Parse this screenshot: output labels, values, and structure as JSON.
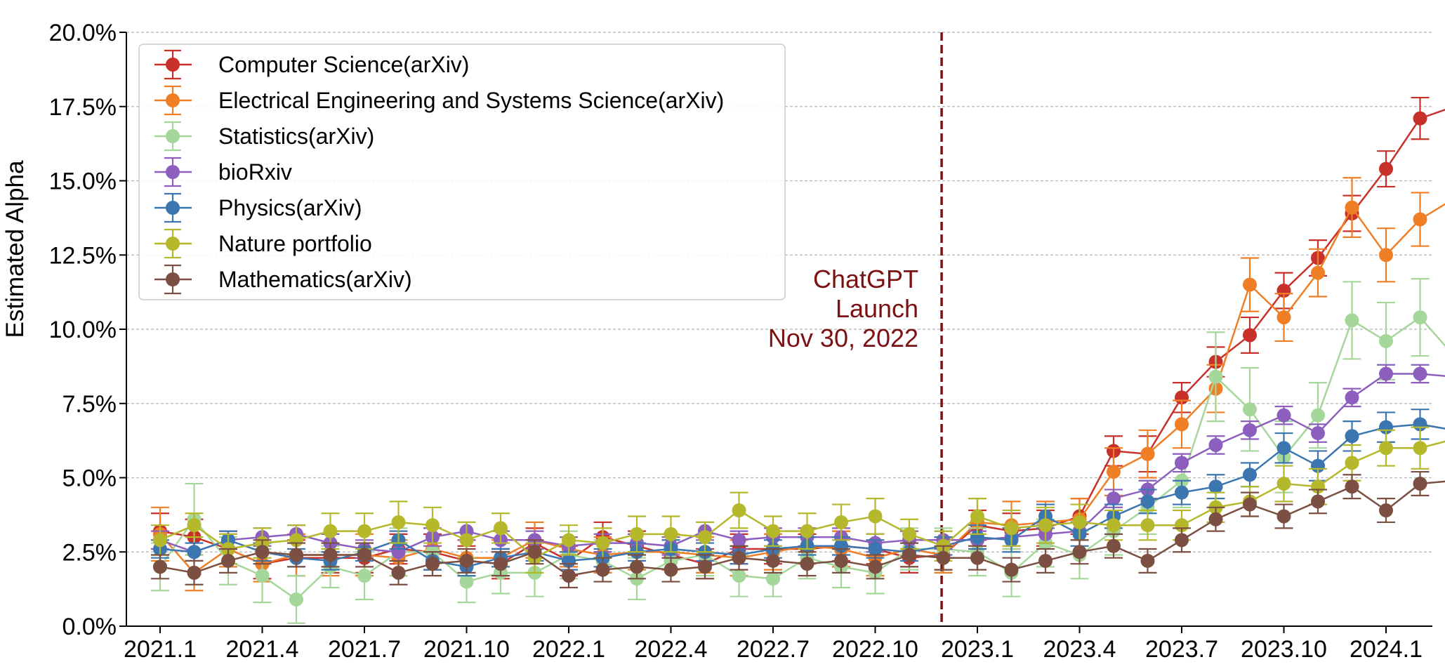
{
  "chart_data": {
    "type": "line",
    "title": "",
    "xlabel": "",
    "ylabel": "Estimated Alpha",
    "ylim": [
      0,
      20
    ],
    "y_ticks": [
      0,
      2.5,
      5,
      7.5,
      10,
      12.5,
      15,
      17.5,
      20
    ],
    "y_tick_labels": [
      "0.0%",
      "2.5%",
      "5.0%",
      "7.5%",
      "10.0%",
      "12.5%",
      "15.0%",
      "17.5%",
      "20.0%"
    ],
    "x_tick_indices": [
      0,
      3,
      6,
      9,
      12,
      15,
      18,
      21,
      24,
      27,
      30,
      33,
      36
    ],
    "x_tick_labels": [
      "2021.1",
      "2021.4",
      "2021.7",
      "2021.10",
      "2022.1",
      "2022.4",
      "2022.7",
      "2022.10",
      "2023.1",
      "2023.4",
      "2023.7",
      "2023.10",
      "2024.1"
    ],
    "grid": "horizontal dashed",
    "legend_position": "top-left",
    "annotation": {
      "lines": [
        "ChatGPT",
        "Launch",
        "Nov 30, 2022"
      ],
      "x_index": 22.95,
      "color": "#7b1113",
      "style": "dashed vertical line"
    },
    "series": [
      {
        "name": "Computer Science(arXiv)",
        "color": "#c8302a",
        "values": [
          3.2,
          3.0,
          2.6,
          2.1,
          2.3,
          2.3,
          2.3,
          2.6,
          2.5,
          2.2,
          2.1,
          2.8,
          2.2,
          3.0,
          2.7,
          2.4,
          2.1,
          2.6,
          2.6,
          2.6,
          2.7,
          2.6,
          2.3,
          2.4,
          3.4,
          3.2,
          3.3,
          3.7,
          5.9,
          5.8,
          7.7,
          8.9,
          9.8,
          11.3,
          12.4,
          13.9,
          15.4,
          17.1,
          17.5
        ],
        "errors": [
          0.6,
          0.6,
          0.5,
          0.5,
          0.6,
          0.5,
          0.5,
          0.5,
          0.6,
          0.5,
          0.5,
          0.5,
          0.5,
          0.5,
          0.5,
          0.5,
          0.5,
          0.5,
          0.5,
          0.5,
          0.5,
          0.5,
          0.5,
          0.5,
          0.5,
          0.6,
          0.6,
          0.6,
          0.5,
          0.6,
          0.5,
          0.5,
          0.6,
          0.6,
          0.6,
          0.6,
          0.6,
          0.7,
          0.7
        ]
      },
      {
        "name": "Electrical Engineering and Systems Science(arXiv)",
        "color": "#f07e25",
        "values": [
          3.1,
          1.8,
          2.6,
          2.1,
          2.4,
          2.4,
          2.4,
          2.3,
          2.6,
          2.3,
          2.3,
          2.9,
          2.6,
          2.4,
          2.5,
          2.5,
          2.4,
          2.3,
          2.5,
          2.7,
          2.6,
          2.3,
          2.6,
          2.4,
          3.5,
          3.4,
          3.5,
          3.6,
          5.2,
          5.8,
          6.8,
          8.0,
          11.5,
          10.4,
          11.9,
          14.1,
          12.5,
          13.7,
          14.4
        ],
        "errors": [
          0.9,
          0.6,
          0.6,
          0.6,
          0.7,
          0.7,
          0.7,
          0.6,
          0.7,
          0.6,
          0.6,
          0.6,
          0.6,
          0.6,
          0.6,
          0.6,
          0.6,
          0.6,
          0.6,
          0.6,
          0.6,
          0.6,
          0.6,
          0.6,
          0.8,
          0.8,
          0.7,
          0.7,
          0.8,
          0.8,
          0.8,
          0.8,
          0.9,
          0.8,
          0.8,
          1.0,
          0.9,
          0.9,
          0.9
        ]
      },
      {
        "name": "Statistics(arXiv)",
        "color": "#a6d79a",
        "values": [
          2.0,
          3.6,
          2.2,
          1.7,
          0.9,
          2.0,
          1.7,
          2.5,
          2.5,
          1.5,
          1.8,
          1.8,
          2.4,
          2.2,
          1.6,
          2.2,
          2.4,
          1.7,
          1.6,
          2.3,
          2.0,
          1.8,
          2.6,
          2.6,
          2.5,
          1.8,
          2.8,
          2.4,
          3.2,
          4.0,
          4.9,
          8.4,
          7.3,
          5.7,
          7.1,
          10.3,
          9.6,
          10.4,
          9.1
        ],
        "errors": [
          0.8,
          1.2,
          0.8,
          0.9,
          0.8,
          0.7,
          0.8,
          0.8,
          0.8,
          0.7,
          0.7,
          0.8,
          0.8,
          0.7,
          0.7,
          0.7,
          0.7,
          0.7,
          0.6,
          0.7,
          0.7,
          0.7,
          0.7,
          0.7,
          0.8,
          0.8,
          0.8,
          0.8,
          0.8,
          0.9,
          0.9,
          1.5,
          1.4,
          1.2,
          1.1,
          1.3,
          1.3,
          1.3,
          1.1
        ]
      },
      {
        "name": "bioRxiv",
        "color": "#8c5fbf",
        "values": [
          2.9,
          2.5,
          2.9,
          3.0,
          3.1,
          2.8,
          2.6,
          2.5,
          3.0,
          3.2,
          2.9,
          2.9,
          2.7,
          2.8,
          2.8,
          2.7,
          3.2,
          2.9,
          3.0,
          3.0,
          3.0,
          2.8,
          2.9,
          2.9,
          2.9,
          3.0,
          3.1,
          3.2,
          4.3,
          4.6,
          5.5,
          6.1,
          6.6,
          7.1,
          6.5,
          7.7,
          8.5,
          8.5,
          8.4
        ],
        "errors": [
          0.3,
          0.3,
          0.3,
          0.3,
          0.3,
          0.3,
          0.3,
          0.3,
          0.3,
          0.3,
          0.3,
          0.3,
          0.3,
          0.3,
          0.3,
          0.3,
          0.3,
          0.3,
          0.3,
          0.3,
          0.3,
          0.3,
          0.3,
          0.3,
          0.3,
          0.3,
          0.3,
          0.3,
          0.3,
          0.3,
          0.3,
          0.3,
          0.3,
          0.3,
          0.3,
          0.3,
          0.3,
          0.3,
          0.3
        ]
      },
      {
        "name": "Physics(arXiv)",
        "color": "#3b76b0",
        "values": [
          2.6,
          2.5,
          2.9,
          2.5,
          2.3,
          2.2,
          2.5,
          2.9,
          2.2,
          2.0,
          2.3,
          2.5,
          2.2,
          2.3,
          2.5,
          2.6,
          2.5,
          2.4,
          2.6,
          2.7,
          2.7,
          2.6,
          2.5,
          2.7,
          3.0,
          2.9,
          3.7,
          3.1,
          3.7,
          4.2,
          4.5,
          4.7,
          5.1,
          6.0,
          5.4,
          6.4,
          6.7,
          6.8,
          6.6
        ],
        "errors": [
          0.3,
          0.3,
          0.3,
          0.3,
          0.3,
          0.3,
          0.3,
          0.3,
          0.3,
          0.3,
          0.3,
          0.3,
          0.3,
          0.3,
          0.3,
          0.3,
          0.3,
          0.3,
          0.3,
          0.3,
          0.3,
          0.3,
          0.3,
          0.3,
          0.4,
          0.4,
          0.4,
          0.4,
          0.4,
          0.4,
          0.4,
          0.4,
          0.4,
          0.5,
          0.5,
          0.5,
          0.5,
          0.5,
          0.5
        ]
      },
      {
        "name": "Nature portfolio",
        "color": "#b5b82b",
        "values": [
          2.9,
          3.4,
          2.6,
          2.8,
          2.9,
          3.2,
          3.2,
          3.5,
          3.4,
          2.9,
          3.3,
          2.3,
          2.9,
          2.8,
          3.1,
          3.1,
          3.0,
          3.9,
          3.2,
          3.2,
          3.5,
          3.7,
          3.1,
          2.7,
          3.7,
          3.3,
          3.4,
          3.5,
          3.4,
          3.4,
          3.4,
          4.0,
          4.2,
          4.8,
          4.7,
          5.5,
          6.0,
          6.0,
          6.3
        ],
        "errors": [
          0.5,
          0.4,
          0.5,
          0.5,
          0.5,
          0.6,
          0.6,
          0.7,
          0.6,
          0.6,
          0.5,
          0.5,
          0.5,
          0.5,
          0.6,
          0.6,
          0.5,
          0.6,
          0.5,
          0.6,
          0.6,
          0.6,
          0.5,
          0.5,
          0.6,
          0.6,
          0.6,
          0.6,
          0.5,
          0.5,
          0.5,
          0.5,
          0.5,
          0.6,
          0.6,
          0.6,
          0.6,
          0.7,
          0.6
        ]
      },
      {
        "name": "Mathematics(arXiv)",
        "color": "#7c4f43",
        "values": [
          2.0,
          1.8,
          2.2,
          2.5,
          2.4,
          2.4,
          2.4,
          1.8,
          2.1,
          2.2,
          2.1,
          2.5,
          1.7,
          1.9,
          2.0,
          1.9,
          2.0,
          2.3,
          2.2,
          2.1,
          2.2,
          2.0,
          2.4,
          2.3,
          2.3,
          1.9,
          2.2,
          2.5,
          2.7,
          2.2,
          2.9,
          3.6,
          4.1,
          3.7,
          4.2,
          4.7,
          3.9,
          4.8,
          4.9
        ],
        "errors": [
          0.4,
          0.4,
          0.4,
          0.4,
          0.4,
          0.4,
          0.4,
          0.4,
          0.4,
          0.4,
          0.4,
          0.4,
          0.4,
          0.4,
          0.4,
          0.4,
          0.4,
          0.4,
          0.4,
          0.4,
          0.4,
          0.4,
          0.4,
          0.4,
          0.4,
          0.4,
          0.4,
          0.4,
          0.4,
          0.4,
          0.4,
          0.4,
          0.4,
          0.4,
          0.4,
          0.4,
          0.4,
          0.4,
          0.4
        ]
      }
    ]
  }
}
